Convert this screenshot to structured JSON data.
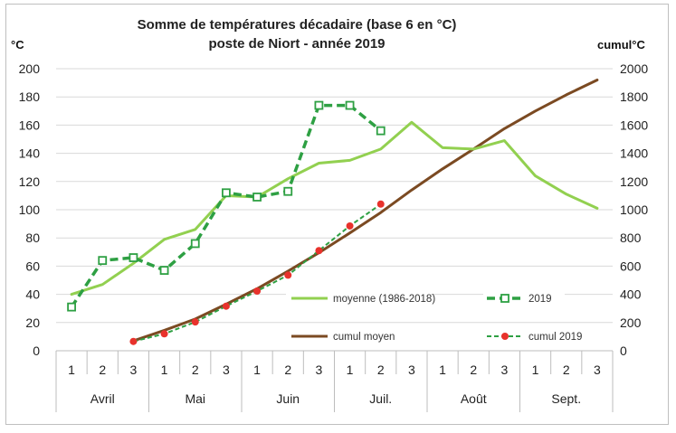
{
  "chart_data": {
    "type": "line",
    "title": "Somme de températures décadaire (base 6 en °C)",
    "subtitle": "poste de Niort - année 2019",
    "ylabel_left": "°C",
    "ylabel_right": "cumul°C",
    "ylim_left": [
      0,
      200
    ],
    "ylim_right": [
      0,
      2000
    ],
    "y_ticks_left": [
      "0",
      "20",
      "40",
      "60",
      "80",
      "100",
      "120",
      "140",
      "160",
      "180",
      "200"
    ],
    "y_ticks_right": [
      "0",
      "200",
      "400",
      "600",
      "800",
      "1000",
      "1200",
      "1400",
      "1600",
      "1800",
      "2000"
    ],
    "decades": [
      "1",
      "2",
      "3",
      "1",
      "2",
      "3",
      "1",
      "2",
      "3",
      "1",
      "2",
      "3",
      "1",
      "2",
      "3",
      "1",
      "2",
      "3"
    ],
    "months": [
      "Avril",
      "Mai",
      "Juin",
      "Juil.",
      "Août",
      "Sept."
    ],
    "grid": true,
    "series": [
      {
        "name": "moyenne (1986-2018)",
        "axis": "left",
        "color": "#92d050",
        "style": "solid",
        "values": [
          40,
          47,
          62,
          79,
          86,
          110,
          109,
          122,
          133,
          135,
          143,
          162,
          144,
          143,
          149,
          124,
          111,
          101
        ]
      },
      {
        "name": "2019",
        "axis": "left",
        "color": "#2ea043",
        "style": "dashed-square",
        "values": [
          31,
          64,
          66,
          57,
          76,
          112,
          109,
          113,
          174,
          174,
          156,
          null,
          null,
          null,
          null,
          null,
          null,
          null
        ]
      },
      {
        "name": "cumul moyen",
        "axis": "right",
        "color": "#7b4a22",
        "style": "solid",
        "values": [
          null,
          null,
          70,
          145,
          225,
          330,
          440,
          565,
          695,
          835,
          980,
          1140,
          1290,
          1430,
          1575,
          1700,
          1815,
          1920
        ]
      },
      {
        "name": "cumul 2019",
        "axis": "right",
        "color": "#2ea043",
        "marker_color": "#e8322c",
        "style": "dashed-dot",
        "values": [
          null,
          null,
          66,
          120,
          204,
          316,
          423,
          536,
          710,
          885,
          1040,
          null,
          null,
          null,
          null,
          null,
          null,
          null
        ]
      }
    ]
  }
}
